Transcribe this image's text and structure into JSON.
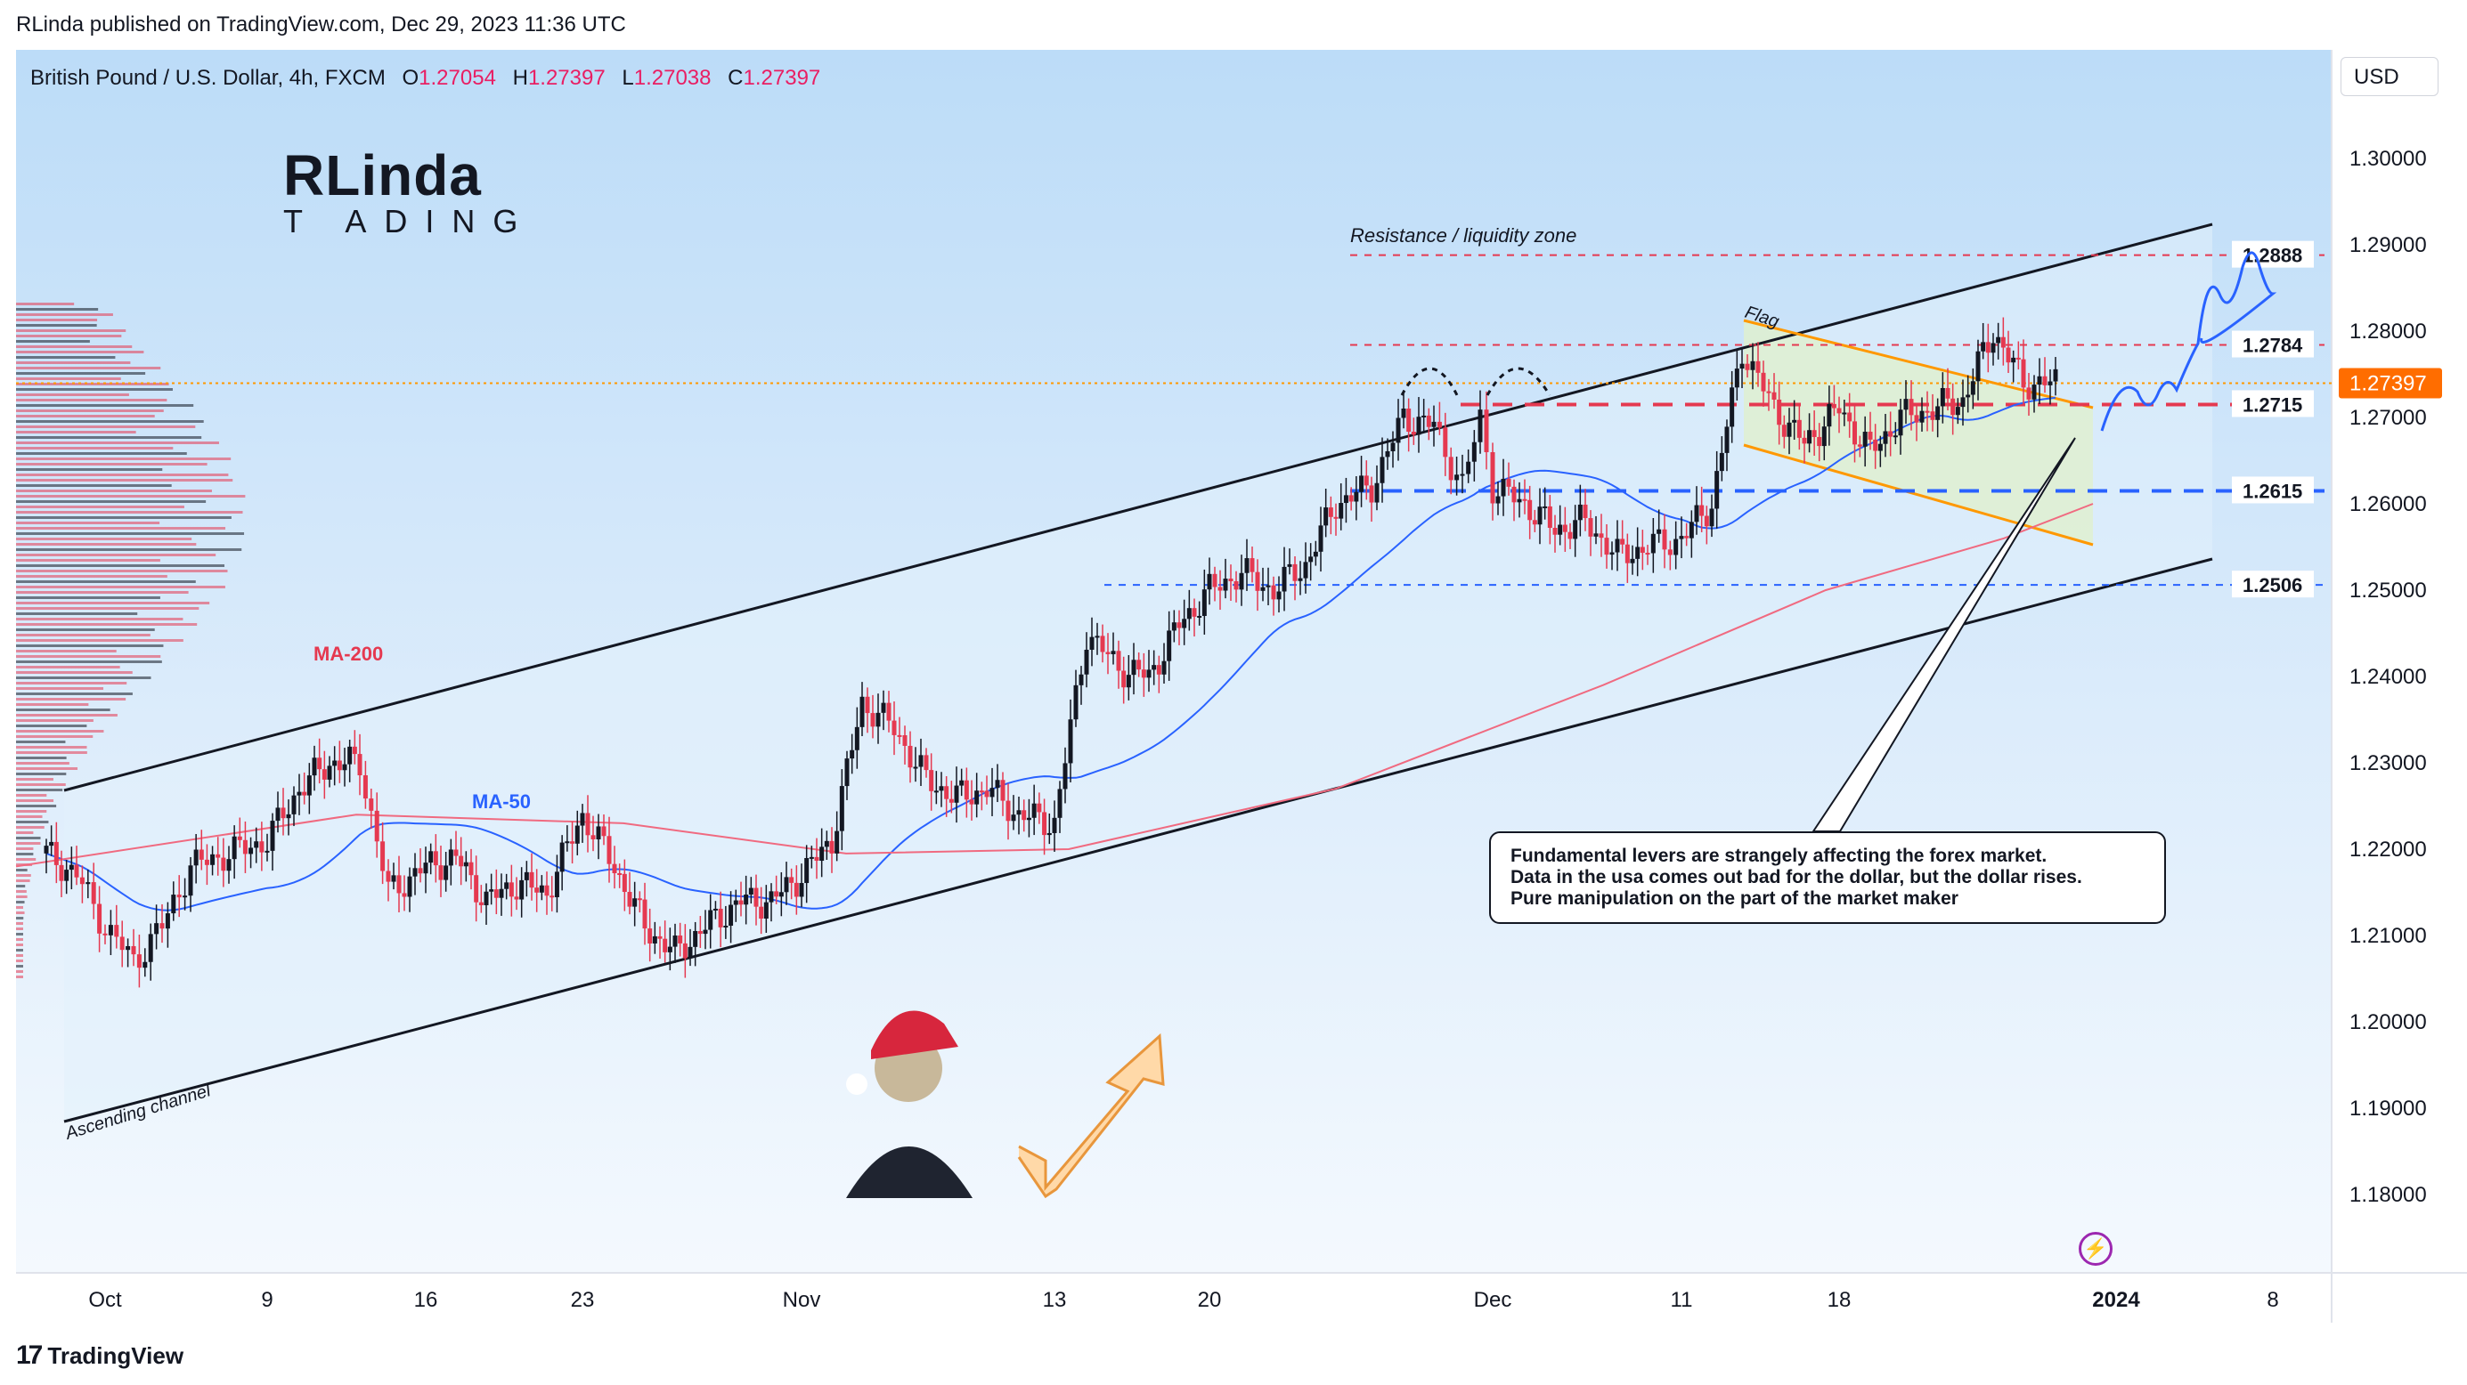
{
  "header": {
    "published": "RLinda published on TradingView.com, Dec 29, 2023 11:36 UTC"
  },
  "symbol": {
    "name": "British Pound / U.S. Dollar, 4h, FXCM",
    "open_label": "O",
    "open": "1.27054",
    "high_label": "H",
    "high": "1.27397",
    "low_label": "L",
    "low": "1.27038",
    "close_label": "C",
    "close": "1.27397"
  },
  "currency_button": "USD",
  "logo": {
    "line1": "Linda",
    "line2": "ADING",
    "prefix_r": "R",
    "prefix_t": "T"
  },
  "annotations": {
    "resistance": "Resistance / liquidity zone",
    "flag": "Flag",
    "channel": "Ascending channel",
    "ma200": "MA-200",
    "ma50": "MA-50"
  },
  "note": {
    "line1": "Fundamental levers are strangely affecting the forex market.",
    "line2": "Data in the usa comes out bad for the dollar, but the dollar rises.",
    "line3": "Pure manipulation on the part of the market maker"
  },
  "footer": {
    "brand": "TradingView"
  },
  "colors": {
    "up": "#131722",
    "down": "#e53950",
    "ma50": "#2962ff",
    "ma200": "#f06a80",
    "flag": "#ff9800",
    "accent": "#ff6d00"
  },
  "chart_data": {
    "type": "candlestick",
    "y_range": [
      1.17,
      1.31
    ],
    "y_ticks": [
      "1.30000",
      "1.29000",
      "1.28000",
      "1.27000",
      "1.26000",
      "1.25000",
      "1.24000",
      "1.23000",
      "1.22000",
      "1.21000",
      "1.20000",
      "1.19000",
      "1.18000"
    ],
    "x_ticks": [
      "Oct",
      "9",
      "16",
      "23",
      "Nov",
      "13",
      "20",
      "Dec",
      "11",
      "18",
      "2024",
      "8"
    ],
    "current_price": "1.27397",
    "levels": [
      {
        "label": "1.2888",
        "value": 1.2888,
        "style": "red-dashed"
      },
      {
        "label": "1.2784",
        "value": 1.2784,
        "style": "red-dashed"
      },
      {
        "label": "1.2715",
        "value": 1.2715,
        "style": "red-dashed-bold"
      },
      {
        "label": "1.2615",
        "value": 1.2615,
        "style": "blue-dashed-bold"
      },
      {
        "label": "1.2506",
        "value": 1.2506,
        "style": "blue-dashed"
      }
    ],
    "price_path": [
      [
        "Sep 29",
        1.2195
      ],
      [
        "Oct 2",
        1.217
      ],
      [
        "Oct 3",
        1.211
      ],
      [
        "Oct 4",
        1.207
      ],
      [
        "Oct 5",
        1.211
      ],
      [
        "Oct 6",
        1.218
      ],
      [
        "Oct 9",
        1.221
      ],
      [
        "Oct 10",
        1.227
      ],
      [
        "Oct 11",
        1.23
      ],
      [
        "Oct 12",
        1.23
      ],
      [
        "Oct 13",
        1.215
      ],
      [
        "Oct 16",
        1.218
      ],
      [
        "Oct 17",
        1.219
      ],
      [
        "Oct 18",
        1.214
      ],
      [
        "Oct 19",
        1.216
      ],
      [
        "Oct 20",
        1.215
      ],
      [
        "Oct 23",
        1.224
      ],
      [
        "Oct 24",
        1.218
      ],
      [
        "Oct 25",
        1.211
      ],
      [
        "Oct 26",
        1.208
      ],
      [
        "Oct 27",
        1.211
      ],
      [
        "Oct 30",
        1.214
      ],
      [
        "Oct 31",
        1.214
      ],
      [
        "Nov 1",
        1.217
      ],
      [
        "Nov 2",
        1.221
      ],
      [
        "Nov 3",
        1.237
      ],
      [
        "Nov 6",
        1.234
      ],
      [
        "Nov 7",
        1.228
      ],
      [
        "Nov 8",
        1.226
      ],
      [
        "Nov 9",
        1.227
      ],
      [
        "Nov 10",
        1.224
      ],
      [
        "Nov 13",
        1.223
      ],
      [
        "Nov 14",
        1.245
      ],
      [
        "Nov 15",
        1.241
      ],
      [
        "Nov 16",
        1.24
      ],
      [
        "Nov 17",
        1.246
      ],
      [
        "Nov 20",
        1.25
      ],
      [
        "Nov 21",
        1.252
      ],
      [
        "Nov 22",
        1.25
      ],
      [
        "Nov 23",
        1.253
      ],
      [
        "Nov 24",
        1.26
      ],
      [
        "Nov 27",
        1.262
      ],
      [
        "Nov 28",
        1.27
      ],
      [
        "Nov 29",
        1.269
      ],
      [
        "Nov 30",
        1.262
      ],
      [
        "Dec 1",
        1.27
      ],
      [
        "Dec 4",
        1.262
      ],
      [
        "Dec 5",
        1.26
      ],
      [
        "Dec 6",
        1.257
      ],
      [
        "Dec 7",
        1.258
      ],
      [
        "Dec 8",
        1.254
      ],
      [
        "Dec 11",
        1.255
      ],
      [
        "Dec 12",
        1.256
      ],
      [
        "Dec 13",
        1.26
      ],
      [
        "Dec 14",
        1.278
      ],
      [
        "Dec 15",
        1.271
      ],
      [
        "Dec 18",
        1.267
      ],
      [
        "Dec 19",
        1.271
      ],
      [
        "Dec 20",
        1.266
      ],
      [
        "Dec 21",
        1.27
      ],
      [
        "Dec 22",
        1.271
      ],
      [
        "Dec 26",
        1.272
      ],
      [
        "Dec 27",
        1.28
      ],
      [
        "Dec 28",
        1.274
      ],
      [
        "Dec 29",
        1.274
      ]
    ]
  }
}
